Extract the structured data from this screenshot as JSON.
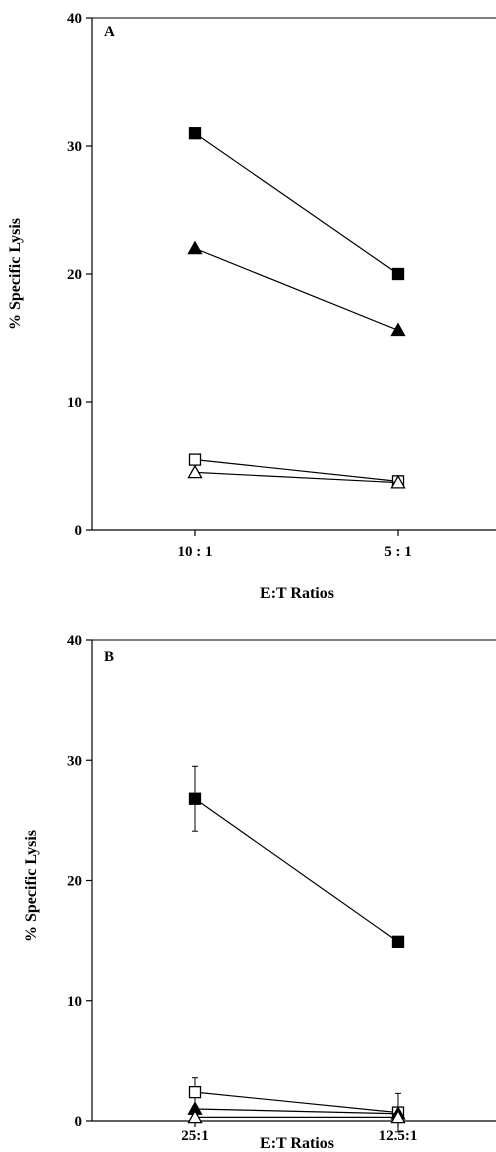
{
  "chart_data": [
    {
      "type": "line",
      "panel_label": "A",
      "categories": [
        "10 : 1",
        "5 : 1"
      ],
      "xlabel": "E:T  Ratios",
      "ylabel": "%  Specific  Lysis",
      "ylim": [
        0,
        40
      ],
      "yticks": [
        "0",
        "10",
        "20",
        "30",
        "40"
      ],
      "series": [
        {
          "marker": "filled-square",
          "values": [
            31,
            20
          ]
        },
        {
          "marker": "filled-triangle",
          "values": [
            22,
            15.6
          ]
        },
        {
          "marker": "open-square",
          "values": [
            5.5,
            3.8
          ]
        },
        {
          "marker": "open-triangle",
          "values": [
            4.5,
            3.7
          ]
        }
      ]
    },
    {
      "type": "line",
      "panel_label": "B",
      "categories": [
        "25:1",
        "12.5:1"
      ],
      "xlabel": "E:T Ratios",
      "ylabel": "% Specific Lysis",
      "ylim": [
        0,
        40
      ],
      "yticks": [
        "0",
        "10",
        "20",
        "30",
        "40"
      ],
      "series": [
        {
          "marker": "filled-square",
          "values": [
            26.8,
            14.9
          ],
          "error": [
            2.7,
            0
          ]
        },
        {
          "marker": "open-square",
          "values": [
            2.4,
            0.7
          ],
          "error": [
            1.2,
            1.6
          ]
        },
        {
          "marker": "filled-triangle",
          "values": [
            1.0,
            0.6
          ],
          "error": [
            0,
            0
          ]
        },
        {
          "marker": "open-triangle",
          "values": [
            0.3,
            0.3
          ],
          "error": [
            0.4,
            0.4
          ]
        }
      ]
    }
  ]
}
